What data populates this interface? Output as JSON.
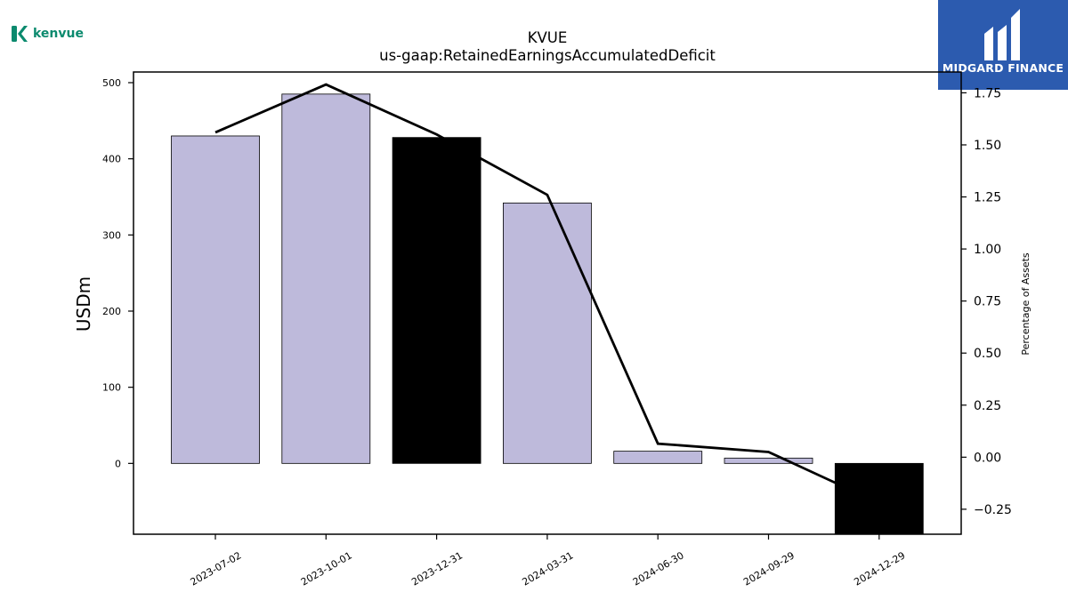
{
  "brand": {
    "company_logo_text": "kenvue",
    "company_logo_color": "#0b8a6e",
    "publisher_logo_text": "MIDGARD FINANCE",
    "publisher_bg_color": "#2c5baf"
  },
  "chart_data": {
    "type": "bar",
    "title": "KVUE",
    "subtitle": "us-gaap:RetainedEarningsAccumulatedDeficit",
    "ylabel": "USDm",
    "y2label": "Percentage of Assets",
    "categories": [
      "2023-07-02",
      "2023-10-01",
      "2023-12-31",
      "2024-03-31",
      "2024-06-30",
      "2024-09-29",
      "2024-12-29"
    ],
    "series": [
      {
        "type": "bar",
        "axis": "left",
        "values": [
          430,
          485,
          428,
          342,
          16,
          7,
          -95
        ],
        "colors": [
          "#bebadb",
          "#bebadb",
          "#000000",
          "#bebadb",
          "#bebadb",
          "#bebadb",
          "#000000"
        ]
      },
      {
        "type": "line",
        "axis": "right",
        "values": [
          1.56,
          1.79,
          1.55,
          1.26,
          0.065,
          0.025,
          -0.22
        ],
        "color": "#000000"
      }
    ],
    "ylim": [
      -93,
      514
    ],
    "y2lim": [
      -0.37,
      1.85
    ],
    "yticks": [
      0,
      100,
      200,
      300,
      400,
      500
    ],
    "y2ticks": [
      "-0.25",
      "0.00",
      "0.25",
      "0.50",
      "0.75",
      "1.00",
      "1.25",
      "1.50",
      "1.75"
    ],
    "grid": false,
    "legend": "none"
  }
}
